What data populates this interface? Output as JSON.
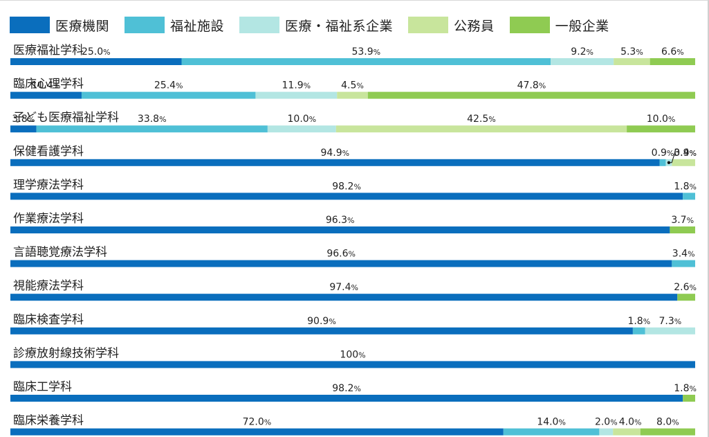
{
  "chart_data": {
    "type": "bar",
    "orientation": "horizontal-stacked-100",
    "legend_placement": "top-left",
    "series": [
      {
        "name": "医療機関",
        "color": "#0a6ebd"
      },
      {
        "name": "福祉施設",
        "color": "#4fc0d6"
      },
      {
        "name": "医療・福祉系企業",
        "color": "#b3e6e3"
      },
      {
        "name": "公務員",
        "color": "#c8e59c"
      },
      {
        "name": "一般企業",
        "color": "#8fcb52"
      }
    ],
    "categories": [
      "医療福祉学科",
      "臨床心理学科",
      "子ども医療福祉学科",
      "保健看護学科",
      "理学療法学科",
      "作業療法学科",
      "言語聴覚療法学科",
      "視能療法学科",
      "臨床検査学科",
      "診療放射線技術学科",
      "臨床工学科",
      "臨床栄養学科"
    ],
    "values": [
      [
        25.0,
        53.9,
        9.2,
        5.3,
        6.6
      ],
      [
        10.4,
        25.4,
        11.9,
        4.5,
        47.8
      ],
      [
        3.8,
        33.8,
        10.0,
        42.5,
        10.0
      ],
      [
        94.9,
        0.9,
        0.9,
        3.4,
        0
      ],
      [
        98.2,
        1.8,
        0,
        0,
        0
      ],
      [
        96.3,
        0,
        0,
        0,
        3.7
      ],
      [
        96.6,
        3.4,
        0,
        0,
        0
      ],
      [
        97.4,
        0,
        0,
        0,
        2.6
      ],
      [
        90.9,
        1.8,
        7.3,
        0,
        0
      ],
      [
        100,
        0,
        0,
        0,
        0
      ],
      [
        98.2,
        0,
        0,
        0,
        1.8
      ],
      [
        72.0,
        14.0,
        2.0,
        4.0,
        8.0
      ]
    ],
    "labels": [
      [
        "25.0%",
        "53.9%",
        "9.2%",
        "5.3%",
        "6.6%"
      ],
      [
        "10.4%",
        "25.4%",
        "11.9%",
        "4.5%",
        "47.8%"
      ],
      [
        "3.8%",
        "33.8%",
        "10.0%",
        "42.5%",
        "10.0%"
      ],
      [
        "94.9%",
        "0.9%",
        "0.9%",
        "3.4%",
        ""
      ],
      [
        "98.2%",
        "1.8%",
        "",
        "",
        ""
      ],
      [
        "96.3%",
        "",
        "",
        "",
        "3.7%"
      ],
      [
        "96.6%",
        "3.4%",
        "",
        "",
        ""
      ],
      [
        "97.4%",
        "",
        "",
        "",
        "2.6%"
      ],
      [
        "90.9%",
        "1.8%",
        "7.3%",
        "",
        ""
      ],
      [
        "100%",
        "",
        "",
        "",
        ""
      ],
      [
        "98.2%",
        "",
        "",
        "",
        "1.8%"
      ],
      [
        "72.0%",
        "14.0%",
        "2.0%",
        "4.0%",
        "8.0%"
      ]
    ],
    "xlim": [
      0,
      100
    ],
    "grid": false
  }
}
